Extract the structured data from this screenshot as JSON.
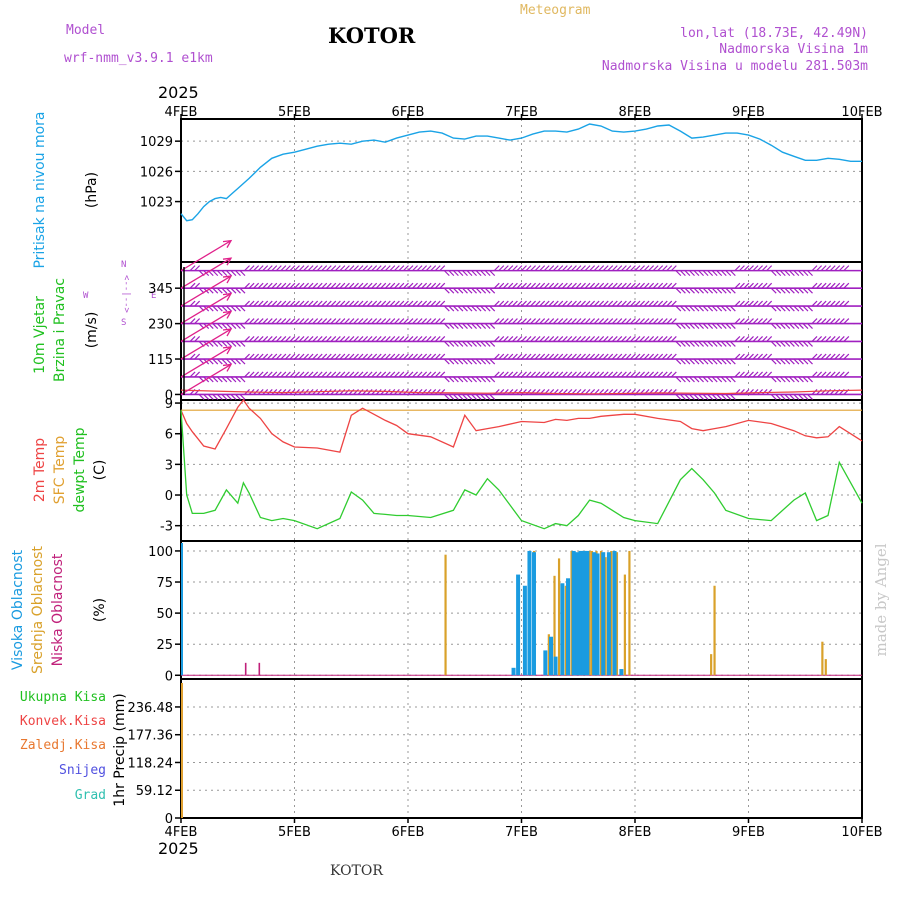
{
  "header": {
    "model_label": "Model",
    "model_name": "wrf-nmm_v3.9.1 e1km",
    "station": "KOTOR",
    "meteogram": "Meteogram",
    "lonlat": "lon,lat (18.73E, 42.49N)",
    "elevation": "Nadmorska Visina 1m",
    "model_elevation": "Nadmorska Visina u modelu 281.503m",
    "year_top": "2025",
    "year_bottom": "2025",
    "footer_station": "KOTOR",
    "watermark": "made by Angel"
  },
  "colors": {
    "pressure": "#1aa3e6",
    "wind_barb": "#a020c0",
    "wind_arrow": "#e0208a",
    "temp2m": "#ee4444",
    "sfc": "#e0a030",
    "dewpt": "#30cc30",
    "cloud_high": "#1a9be0",
    "cloud_mid": "#d9a12a",
    "cloud_low": "#c0207a"
  },
  "chart_data": [
    {
      "type": "line",
      "panel": "pressure",
      "y_title": "Pritisak na nivou mora",
      "unit": "(hPa)",
      "x_categories": [
        "4FEB",
        "5FEB",
        "6FEB",
        "7FEB",
        "8FEB",
        "9FEB",
        "10FEB"
      ],
      "yticks": [
        1023,
        1026,
        1029
      ],
      "ylim": [
        1017,
        1031.2
      ],
      "x": [
        0,
        0.05,
        0.1,
        0.15,
        0.2,
        0.25,
        0.3,
        0.35,
        0.4,
        0.45,
        0.5,
        0.6,
        0.7,
        0.8,
        0.9,
        1.0,
        1.1,
        1.2,
        1.3,
        1.4,
        1.5,
        1.6,
        1.7,
        1.8,
        1.9,
        2.0,
        2.1,
        2.2,
        2.3,
        2.4,
        2.5,
        2.6,
        2.7,
        2.8,
        2.9,
        3.0,
        3.1,
        3.2,
        3.3,
        3.4,
        3.5,
        3.6,
        3.7,
        3.8,
        3.9,
        4.0,
        4.1,
        4.2,
        4.3,
        4.4,
        4.5,
        4.6,
        4.7,
        4.8,
        4.9,
        5.0,
        5.1,
        5.2,
        5.3,
        5.4,
        5.5,
        5.6,
        5.7,
        5.8,
        5.9,
        6.0
      ],
      "y": [
        1021.8,
        1021.1,
        1021.2,
        1021.8,
        1022.5,
        1023.0,
        1023.3,
        1023.4,
        1023.3,
        1023.8,
        1024.3,
        1025.3,
        1026.4,
        1027.3,
        1027.7,
        1027.9,
        1028.2,
        1028.5,
        1028.7,
        1028.8,
        1028.7,
        1029.0,
        1029.1,
        1028.9,
        1029.3,
        1029.6,
        1029.9,
        1030.0,
        1029.8,
        1029.3,
        1029.2,
        1029.5,
        1029.5,
        1029.3,
        1029.1,
        1029.3,
        1029.7,
        1030.0,
        1030.0,
        1029.9,
        1030.2,
        1030.7,
        1030.5,
        1030.0,
        1029.9,
        1030.0,
        1030.2,
        1030.5,
        1030.6,
        1030.0,
        1029.3,
        1029.4,
        1029.6,
        1029.8,
        1029.8,
        1029.6,
        1029.2,
        1028.6,
        1027.9,
        1027.5,
        1027.1,
        1027.1,
        1027.3,
        1027.2,
        1027.0,
        1027.0
      ],
      "series": [
        {
          "name": "Pritisak na nivou mora"
        }
      ]
    },
    {
      "type": "line",
      "panel": "wind",
      "y_title": "10m Vjetar",
      "y_title2": "Brzina i Pravac",
      "unit": "(m/s)",
      "compass_n": "N",
      "compass_w": "W",
      "compass_e": "E",
      "compass_s": "S",
      "compass_arrows": "<--|-->",
      "yticks": [
        0,
        115,
        230,
        345
      ],
      "ylim": [
        -18,
        430
      ],
      "barb_rows": [
        0,
        57,
        115,
        172,
        230,
        287,
        345,
        402
      ],
      "barb_flip_ranges": [
        [
          0.15,
          0.55
        ],
        [
          2.3,
          2.75
        ],
        [
          4.35,
          4.85
        ],
        [
          5.2,
          5.55
        ]
      ],
      "x": [
        0,
        0.3,
        0.6,
        0.9,
        1.2,
        1.5,
        1.8,
        2.1,
        2.4,
        2.7,
        3.0,
        3.3,
        3.6,
        3.9,
        4.2,
        4.5,
        4.8,
        5.1,
        5.4,
        5.7,
        6.0
      ],
      "speed": [
        14,
        11,
        8,
        6,
        9,
        12,
        10,
        6,
        5,
        4,
        6,
        3,
        2,
        3,
        5,
        4,
        3,
        6,
        8,
        12,
        14
      ],
      "arrows_x": 0.15,
      "arrows_y": [
        0,
        57,
        115,
        172,
        230,
        287,
        345,
        402
      ]
    },
    {
      "type": "line",
      "panel": "temperature",
      "y_title_1": "2m Temp",
      "y_title_2": "SFC Temp",
      "y_title_3": "dewpt Temp",
      "unit": "(C)",
      "yticks": [
        -3,
        0,
        3,
        6,
        9
      ],
      "ylim": [
        -4.5,
        9.3
      ],
      "x": [
        0,
        0.05,
        0.1,
        0.15,
        0.2,
        0.3,
        0.4,
        0.5,
        0.55,
        0.6,
        0.7,
        0.8,
        0.9,
        1.0,
        1.2,
        1.4,
        1.5,
        1.6,
        1.7,
        1.8,
        1.9,
        2.0,
        2.2,
        2.4,
        2.5,
        2.6,
        2.7,
        2.8,
        3.0,
        3.2,
        3.3,
        3.4,
        3.5,
        3.6,
        3.7,
        3.8,
        3.9,
        4.0,
        4.2,
        4.4,
        4.5,
        4.6,
        4.7,
        4.8,
        5.0,
        5.2,
        5.4,
        5.5,
        5.6,
        5.7,
        5.8,
        6.0
      ],
      "t2m": [
        8.3,
        7.0,
        6.2,
        5.5,
        4.8,
        4.5,
        6.5,
        8.6,
        9.3,
        8.5,
        7.5,
        6.0,
        5.2,
        4.7,
        4.6,
        4.2,
        7.8,
        8.5,
        7.9,
        7.3,
        6.8,
        6.0,
        5.7,
        4.7,
        7.8,
        6.3,
        6.5,
        6.7,
        7.2,
        7.1,
        7.4,
        7.3,
        7.5,
        7.5,
        7.7,
        7.8,
        7.9,
        7.9,
        7.5,
        7.2,
        6.5,
        6.3,
        6.5,
        6.7,
        7.3,
        7.0,
        6.3,
        5.8,
        5.6,
        5.7,
        6.7,
        5.3
      ],
      "sfc": [
        8.3,
        8.3,
        8.3,
        8.3,
        8.3,
        8.3,
        8.3,
        8.3,
        8.3,
        8.3,
        8.3,
        8.3,
        8.3,
        8.3,
        8.3,
        8.3,
        8.3,
        8.3,
        8.3,
        8.3,
        8.3,
        8.3,
        8.3,
        8.3,
        8.3,
        8.3,
        8.3,
        8.3,
        8.3,
        8.3,
        8.3,
        8.3,
        8.3,
        8.3,
        8.3,
        8.3,
        8.3,
        8.3,
        8.3,
        8.3,
        8.3,
        8.3,
        8.3,
        8.3,
        8.3,
        8.3,
        8.3,
        8.3,
        8.3,
        8.3,
        8.3,
        8.3
      ],
      "dewpt": [
        8.3,
        0,
        -1.8,
        -1.8,
        -1.8,
        -1.5,
        0.5,
        -0.8,
        1.2,
        0.2,
        -2.2,
        -2.5,
        -2.3,
        -2.5,
        -3.3,
        -2.3,
        0.3,
        -0.5,
        -1.8,
        -1.9,
        -2.0,
        -2.0,
        -2.2,
        -1.5,
        0.5,
        0,
        1.6,
        0.5,
        -2.5,
        -3.3,
        -2.8,
        -3.0,
        -2.0,
        -0.5,
        -0.8,
        -1.5,
        -2.2,
        -2.5,
        -2.8,
        1.5,
        2.6,
        1.5,
        0.2,
        -1.5,
        -2.3,
        -2.5,
        -0.5,
        0.2,
        -2.5,
        -2.0,
        3.2,
        -0.8
      ],
      "series": [
        {
          "name": "2m Temp"
        },
        {
          "name": "SFC Temp"
        },
        {
          "name": "dewpt Temp"
        }
      ]
    },
    {
      "type": "bar",
      "panel": "clouds",
      "y_title_1": "Visoka Oblacnost",
      "y_title_2": "Srednja Oblacnost",
      "y_title_3": "Niska Oblacnost",
      "unit": "(%)",
      "yticks": [
        0,
        25,
        50,
        75,
        100
      ],
      "ylim": [
        -3,
        108
      ],
      "high_x": [
        2.93,
        2.97,
        3.03,
        3.07,
        3.11,
        3.21,
        3.26,
        3.3,
        3.36,
        3.41,
        3.46,
        3.49,
        3.52,
        3.55,
        3.58,
        3.64,
        3.67,
        3.72,
        3.77,
        3.82,
        3.88
      ],
      "high_v": [
        6,
        81,
        72,
        100,
        99,
        20,
        31,
        15,
        74,
        78,
        100,
        99,
        100,
        100,
        100,
        99,
        98,
        99,
        99,
        100,
        5
      ],
      "mid_x": [
        2.33,
        3.11,
        3.24,
        3.29,
        3.33,
        3.39,
        3.44,
        3.47,
        3.51,
        3.54,
        3.57,
        3.6,
        3.62,
        3.66,
        3.7,
        3.74,
        3.79,
        3.84,
        3.91,
        3.95,
        4.67,
        4.7,
        5.65,
        5.68
      ],
      "mid_v": [
        97,
        100,
        33,
        80,
        94,
        72,
        100,
        75,
        100,
        100,
        100,
        100,
        100,
        100,
        100,
        95,
        100,
        99,
        81,
        100,
        17,
        72,
        27,
        13
      ],
      "low_x": [
        0.57,
        0.69
      ],
      "low_v": [
        10,
        10
      ],
      "series": [
        {
          "name": "Visoka Oblacnost"
        },
        {
          "name": "Srednja Oblacnost"
        },
        {
          "name": "Niska Oblacnost"
        }
      ]
    },
    {
      "type": "bar",
      "panel": "precipitation",
      "unit": "1hr Precip (mm)",
      "yticks": [
        0,
        59.12,
        118.24,
        177.36,
        236.48
      ],
      "ylim": [
        0,
        296
      ],
      "x": [],
      "values": [],
      "series": [
        {
          "name": "Ukupna Kisa"
        },
        {
          "name": "Konvek.Kisa"
        },
        {
          "name": "Zaledj.Kisa"
        },
        {
          "name": "Snijeg"
        },
        {
          "name": "Grad"
        }
      ]
    }
  ],
  "x_axis": {
    "categories": [
      "4FEB",
      "5FEB",
      "6FEB",
      "7FEB",
      "8FEB",
      "9FEB",
      "10FEB"
    ]
  }
}
